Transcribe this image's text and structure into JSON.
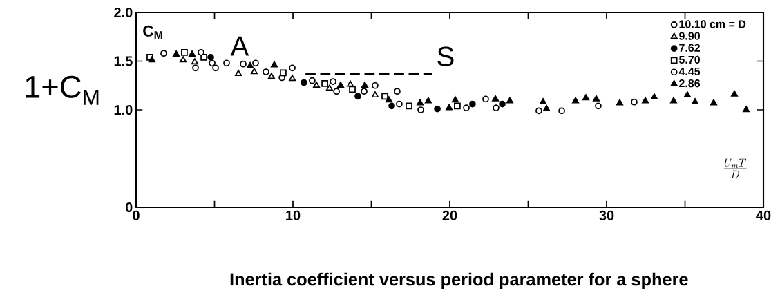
{
  "chart_data": {
    "type": "scatter",
    "title": "Inertia coefficient versus period parameter for a sphere",
    "xlabel": "\\frac{U_m T}{D}",
    "ylabel": "1+C$_{M}$",
    "xlim": [
      0,
      40
    ],
    "ylim": [
      0,
      2
    ],
    "xticks": [
      0,
      {
        "value": 5,
        "label": null
      },
      10,
      {
        "value": 15,
        "label": null
      },
      20,
      {
        "value": 25,
        "label": null
      },
      30,
      {
        "value": 35,
        "label": null
      },
      40
    ],
    "yticks": [
      0,
      {
        "value": 1,
        "label": "1.0"
      },
      {
        "value": 1.5,
        "label": "1.5"
      },
      {
        "value": 2,
        "label": "2.0"
      }
    ],
    "legend": "top right",
    "series": [
      {
        "name": "10.10 cm = D",
        "color": "#ffffff",
        "marker": "circle",
        "x": [
          1.76,
          3.79,
          4.85,
          6.83,
          8.28,
          9.3,
          11.23,
          12.78,
          14.54
        ],
        "values": [
          1.58,
          1.43,
          1.48,
          1.47,
          1.39,
          1.33,
          1.3,
          1.19,
          1.19
        ]
      },
      {
        "name": "9.90",
        "color": "#ffffff",
        "marker": "triangle",
        "x": [
          3.0,
          3.74,
          6.52,
          7.53,
          8.63,
          9.96,
          11.5,
          12.33,
          13.66,
          15.24
        ],
        "values": [
          1.51,
          1.49,
          1.37,
          1.39,
          1.34,
          1.32,
          1.25,
          1.22,
          1.26,
          1.15
        ]
      },
      {
        "name": "7.62",
        "color": "#000000",
        "marker": "circle",
        "x": [
          4.76,
          10.7,
          14.14,
          16.3,
          19.21,
          21.45,
          23.35
        ],
        "values": [
          1.54,
          1.28,
          1.14,
          1.04,
          1.01,
          1.06,
          1.06
        ]
      },
      {
        "name": "5.70",
        "color": "#ffffff",
        "marker": "square",
        "x": [
          0.88,
          3.08,
          4.32,
          9.38,
          12.03,
          13.79,
          15.86,
          17.4,
          20.48
        ],
        "values": [
          1.54,
          1.59,
          1.54,
          1.38,
          1.27,
          1.21,
          1.14,
          1.04,
          1.04
        ]
      },
      {
        "name": "4.45",
        "color": "#ffffff",
        "marker": "circle",
        "x": [
          4.14,
          5.07,
          5.77,
          7.62,
          9.96,
          12.56,
          15.24,
          16.65,
          16.78,
          18.15,
          21.06,
          22.29,
          22.95,
          25.68,
          27.14,
          29.47,
          31.76
        ],
        "values": [
          1.59,
          1.43,
          1.48,
          1.48,
          1.43,
          1.29,
          1.25,
          1.19,
          1.06,
          1.0,
          1.02,
          1.11,
          1.02,
          0.99,
          0.99,
          1.04,
          1.08
        ]
      },
      {
        "name": "2.86",
        "color": "#000000",
        "marker": "triangle",
        "x": [
          1.01,
          2.56,
          3.57,
          7.27,
          8.81,
          13.04,
          14.58,
          16.12,
          18.11,
          18.63,
          19.96,
          20.35,
          22.91,
          23.83,
          25.95,
          26.17,
          28.02,
          28.68,
          29.34,
          30.84,
          32.47,
          33.04,
          34.27,
          35.15,
          35.64,
          36.83,
          38.15,
          38.9
        ],
        "values": [
          1.51,
          1.57,
          1.57,
          1.45,
          1.46,
          1.25,
          1.25,
          1.1,
          1.07,
          1.09,
          1.02,
          1.1,
          1.11,
          1.09,
          1.08,
          1.01,
          1.09,
          1.12,
          1.11,
          1.07,
          1.09,
          1.13,
          1.09,
          1.15,
          1.08,
          1.07,
          1.16,
          1.0
        ]
      },
      {
        "type": "line",
        "color": "#000000",
        "line_style": "dashed",
        "x": [
          10.8,
          18.9
        ],
        "values": [
          1.37,
          1.37
        ]
      }
    ],
    "annotations": [
      {
        "text": "A",
        "x": 5.77,
        "y": 1.48
      },
      {
        "text": "S",
        "x": 18.9,
        "y": 1.37
      },
      "C$_{M}$"
    ]
  }
}
